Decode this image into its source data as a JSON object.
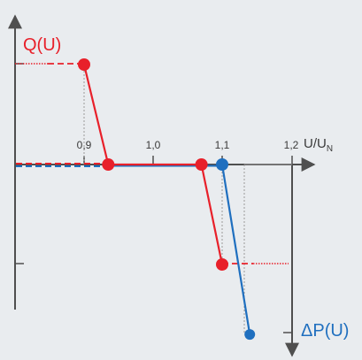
{
  "colors": {
    "background": "#e9ecef",
    "axis": "#4f4f4f",
    "q_curve": "#e8202a",
    "p_curve": "#1f6fbf",
    "helper": "#9a9a9a"
  },
  "labels": {
    "q_axis": "Q(U)",
    "p_axis": "ΔP(U)",
    "u_axis_main": "U/U",
    "u_axis_sub": "N"
  },
  "ticks": [
    {
      "value": 0.9,
      "label": "0,9"
    },
    {
      "value": 1.0,
      "label": "1,0"
    },
    {
      "value": 1.1,
      "label": "1,1"
    },
    {
      "value": 1.2,
      "label": "1,2"
    }
  ],
  "chart_data": {
    "type": "line",
    "x_axis": {
      "label": "U/UN",
      "ticks": [
        0.9,
        1.0,
        1.1,
        1.2
      ]
    },
    "series": [
      {
        "name": "Q(U)",
        "color": "#e8202a",
        "points": [
          [
            0.9,
            1
          ],
          [
            0.935,
            0
          ],
          [
            1.07,
            0
          ],
          [
            1.1,
            -1
          ]
        ]
      },
      {
        "name": "ΔP(U)",
        "color": "#1f6fbf",
        "points": [
          [
            1.1,
            0
          ],
          [
            1.14,
            -1.7
          ]
        ]
      }
    ]
  }
}
